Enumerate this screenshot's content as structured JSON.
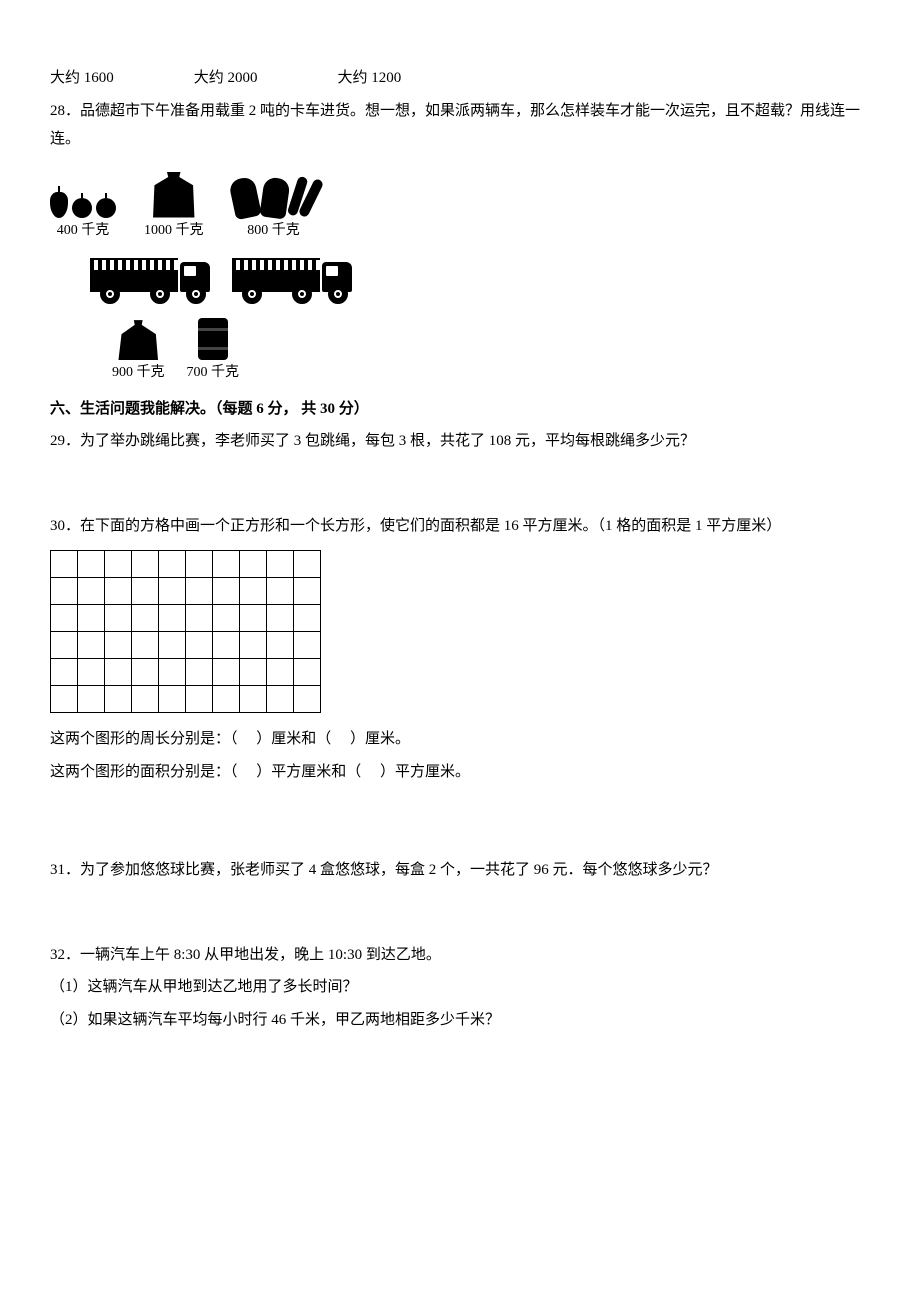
{
  "estimates": {
    "a": "大约 1600",
    "b": "大约 2000",
    "c": "大约 1200"
  },
  "q28": {
    "text": "28．品德超市下午准备用载重 2 吨的卡车进货。想一想，如果派两辆车，那么怎样装车才能一次运完，且不超载？用线连一连。",
    "items": {
      "fruits": "400 千克",
      "sack": "1000 千克",
      "meat": "800 千克",
      "coal": "900 千克",
      "barrel": "700 千克"
    }
  },
  "section6": {
    "title": "六、生活问题我能解决。（每题 6 分， 共 30 分）"
  },
  "q29": {
    "text": "29．为了举办跳绳比赛，李老师买了 3 包跳绳，每包 3 根，共花了 108 元，平均每根跳绳多少元？"
  },
  "q30": {
    "text": "30．在下面的方格中画一个正方形和一个长方形，使它们的面积都是 16 平方厘米。（1 格的面积是 1 平方厘米）",
    "rows": 6,
    "cols": 10,
    "line1": "这两个图形的周长分别是：（　  ）厘米和（　  ）厘米。",
    "line2": "这两个图形的面积分别是：（　 ）平方厘米和（　 ）平方厘米。"
  },
  "q31": {
    "text": "31．为了参加悠悠球比赛，张老师买了 4 盒悠悠球，每盒 2 个，一共花了 96 元．每个悠悠球多少元？"
  },
  "q32": {
    "text": "32．一辆汽车上午 8:30 从甲地出发，晚上 10:30 到达乙地。",
    "sub1": "（1）这辆汽车从甲地到达乙地用了多长时间？",
    "sub2": "（2）如果这辆汽车平均每小时行 46 千米，甲乙两地相距多少千米？"
  }
}
